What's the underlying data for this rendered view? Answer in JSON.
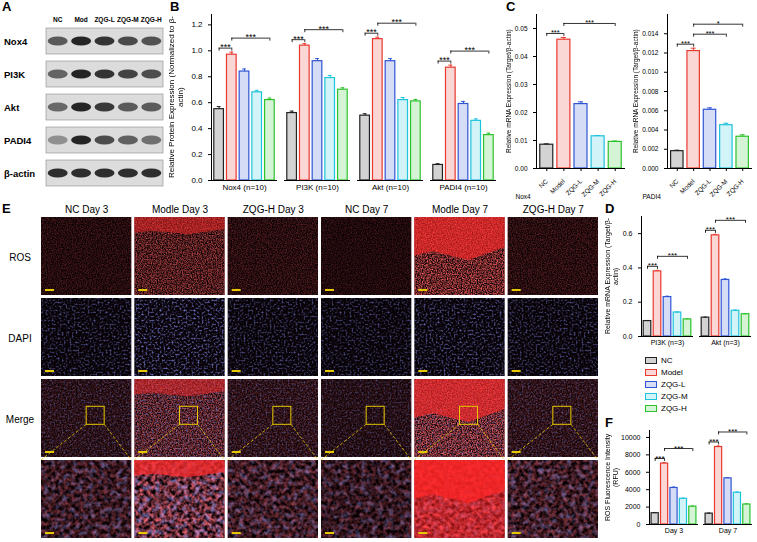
{
  "chart_data": [
    {
      "type": "bar",
      "panel": "B",
      "ylabel": "Relative Protein Expression (Normalized to β-actin)",
      "categories": [
        "Nox4 (n=10)",
        "PI3K (n=10)",
        "Akt (n=10)",
        "PADI4 (n=10)"
      ],
      "series": [
        {
          "name": "NC",
          "color": "#222222",
          "values": [
            0.55,
            0.52,
            0.5,
            0.12
          ],
          "errors": [
            0.02,
            0.015,
            0.015,
            0.01
          ]
        },
        {
          "name": "Model",
          "color": "#e8392f",
          "values": [
            0.97,
            1.04,
            1.09,
            0.87
          ],
          "errors": [
            0.02,
            0.015,
            0.015,
            0.02
          ]
        },
        {
          "name": "ZQG-L",
          "color": "#2f55d4",
          "values": [
            0.84,
            0.92,
            0.92,
            0.59
          ],
          "errors": [
            0.02,
            0.02,
            0.02,
            0.02
          ]
        },
        {
          "name": "ZQG-M",
          "color": "#1ec3dc",
          "values": [
            0.68,
            0.79,
            0.62,
            0.46
          ],
          "errors": [
            0.015,
            0.02,
            0.02,
            0.015
          ]
        },
        {
          "name": "ZQG-H",
          "color": "#2cc22c",
          "values": [
            0.62,
            0.7,
            0.61,
            0.35
          ],
          "errors": [
            0.015,
            0.015,
            0.015,
            0.015
          ]
        }
      ],
      "ylim": [
        0,
        1.28
      ],
      "yticks": [
        {
          "value": 0,
          "label": "0.0"
        },
        0.2,
        0.4,
        0.6,
        0.8,
        {
          "value": 1,
          "label": "1.0"
        },
        1.2
      ],
      "significance": [
        {
          "category": "Nox4 (n=10)",
          "from": "NC",
          "to": "Model",
          "label": "***"
        },
        {
          "category": "Nox4 (n=10)",
          "from": "Model",
          "to": "ZQG-H",
          "label": "***"
        },
        {
          "category": "PI3K (n=10)",
          "from": "NC",
          "to": "Model",
          "label": "***"
        },
        {
          "category": "PI3K (n=10)",
          "from": "Model",
          "to": "ZQG-H",
          "label": "***"
        },
        {
          "category": "Akt (n=10)",
          "from": "NC",
          "to": "Model",
          "label": "***"
        },
        {
          "category": "Akt (n=10)",
          "from": "Model",
          "to": "ZQG-H",
          "label": "***"
        },
        {
          "category": "PADI4 (n=10)",
          "from": "NC",
          "to": "Model",
          "label": "***"
        },
        {
          "category": "PADI4 (n=10)",
          "from": "Model",
          "to": "ZQG-H",
          "label": "***"
        }
      ]
    },
    {
      "type": "bar",
      "panel": "C",
      "xlabel": "Nox4",
      "ylabel": "Relative mRNA Expression (Target/β-actin)",
      "categories": [
        "NC",
        "Model",
        "ZQG-L",
        "ZQG-M",
        "ZQG-H"
      ],
      "values": [
        0.0085,
        0.046,
        0.023,
        0.0115,
        0.0095
      ],
      "errors": [
        0.0003,
        0.0008,
        0.0008,
        0.0003,
        0.0003
      ],
      "colors": [
        "#222222",
        "#e8392f",
        "#2f55d4",
        "#1ec3dc",
        "#2cc22c"
      ],
      "ylim": [
        0,
        0.055
      ],
      "yticks": [
        {
          "value": 0,
          "label": "0.00"
        },
        0.01,
        0.02,
        0.03,
        0.04,
        0.05
      ],
      "significance": [
        {
          "from": "NC",
          "to": "Model",
          "label": "***"
        },
        {
          "from": "Model",
          "to": "ZQG-H",
          "label": "***"
        }
      ]
    },
    {
      "type": "bar",
      "xlabel": "PADI4",
      "ylabel": "Relative mRNA Expression (Target/β-actin)",
      "categories": [
        "NC",
        "Model",
        "ZQG-L",
        "ZQG-M",
        "ZQG-H"
      ],
      "values": [
        0.0018,
        0.0122,
        0.0061,
        0.0045,
        0.0033
      ],
      "errors": [
        0.0001,
        0.0003,
        0.0002,
        0.0002,
        0.0002
      ],
      "colors": [
        "#222222",
        "#e8392f",
        "#2f55d4",
        "#1ec3dc",
        "#2cc22c"
      ],
      "ylim": [
        0,
        0.016
      ],
      "yticks": [
        {
          "value": 0,
          "label": "0.000"
        },
        0.002,
        0.004,
        0.006,
        0.008,
        {
          "value": 0.01,
          "label": "0.010"
        },
        0.012,
        0.014
      ],
      "significance": [
        {
          "from": "NC",
          "to": "Model",
          "label": "***"
        },
        {
          "from": "Model",
          "to": "ZQG-M",
          "label": "***"
        },
        {
          "from": "Model",
          "to": "ZQG-H",
          "label": "*"
        }
      ]
    },
    {
      "type": "bar",
      "panel": "D",
      "ylabel": "Relative mRNA Expression (Target/β-actin)",
      "categories": [
        "PI3K (n=3)",
        "Akt (n=3)"
      ],
      "series": [
        {
          "name": "NC",
          "color": "#222222",
          "values": [
            0.09,
            0.11
          ],
          "errors": [
            0.003,
            0.003
          ]
        },
        {
          "name": "Model",
          "color": "#e8392f",
          "values": [
            0.38,
            0.59
          ],
          "errors": [
            0.006,
            0.006
          ]
        },
        {
          "name": "ZQG-L",
          "color": "#2f55d4",
          "values": [
            0.23,
            0.33
          ],
          "errors": [
            0.005,
            0.006
          ]
        },
        {
          "name": "ZQG-M",
          "color": "#1ec3dc",
          "values": [
            0.14,
            0.15
          ],
          "errors": [
            0.003,
            0.004
          ]
        },
        {
          "name": "ZQG-H",
          "color": "#2cc22c",
          "values": [
            0.1,
            0.13
          ],
          "errors": [
            0.003,
            0.003
          ]
        }
      ],
      "ylim": [
        0,
        0.7
      ],
      "yticks": [
        {
          "value": 0,
          "label": "0.0"
        },
        0.2,
        0.4,
        0.6
      ],
      "legend": "bottom",
      "significance": [
        {
          "category": "PI3K (n=3)",
          "from": "NC",
          "to": "Model",
          "label": "***"
        },
        {
          "category": "PI3K (n=3)",
          "from": "Model",
          "to": "ZQG-H",
          "label": "***"
        },
        {
          "category": "Akt (n=3)",
          "from": "NC",
          "to": "Model",
          "label": "***"
        },
        {
          "category": "Akt (n=3)",
          "from": "Model",
          "to": "ZQG-H",
          "label": "***"
        }
      ]
    },
    {
      "type": "bar",
      "panel": "F",
      "ylabel": "ROS Fluorescence Intensity (RFU)",
      "categories": [
        "Day 3",
        "Day 7"
      ],
      "series": [
        {
          "name": "NC",
          "color": "#222222",
          "values": [
            1300,
            1250
          ],
          "errors": [
            60,
            60
          ]
        },
        {
          "name": "Model",
          "color": "#e8392f",
          "values": [
            7000,
            8900
          ],
          "errors": [
            120,
            120
          ]
        },
        {
          "name": "ZQG-L",
          "color": "#2f55d4",
          "values": [
            4200,
            5300
          ],
          "errors": [
            100,
            100
          ]
        },
        {
          "name": "ZQG-M",
          "color": "#1ec3dc",
          "values": [
            2950,
            3650
          ],
          "errors": [
            80,
            80
          ]
        },
        {
          "name": "ZQG-H",
          "color": "#2cc22c",
          "values": [
            2050,
            2300
          ],
          "errors": [
            70,
            70
          ]
        }
      ],
      "ylim": [
        0,
        10800
      ],
      "yticks": [
        0,
        2000,
        4000,
        6000,
        8000,
        10000
      ],
      "significance": [
        {
          "category": "Day 3",
          "from": "NC",
          "to": "Model",
          "label": "***"
        },
        {
          "category": "Day 3",
          "from": "Model",
          "to": "ZQG-H",
          "label": "***"
        },
        {
          "category": "Day 7",
          "from": "NC",
          "to": "Model",
          "label": "***"
        },
        {
          "category": "Day 7",
          "from": "Model",
          "to": "ZQG-H",
          "label": "***"
        }
      ]
    }
  ],
  "blot": {
    "panel": "A",
    "lanes": [
      "NC",
      "Mod",
      "ZQG-L",
      "ZQG-M",
      "ZQG-H"
    ],
    "rows": [
      "Nox4",
      "PI3K",
      "Akt",
      "PADI4",
      "β-actin"
    ]
  },
  "images": {
    "panel": "E",
    "columns": [
      "NC Day 3",
      "Modle Day 3",
      "ZQG-H Day 3",
      "NC Day 7",
      "Modle Day 7",
      "ZQG-H Day 7"
    ],
    "rows": [
      "ROS",
      "DAPI",
      "Merge"
    ]
  }
}
